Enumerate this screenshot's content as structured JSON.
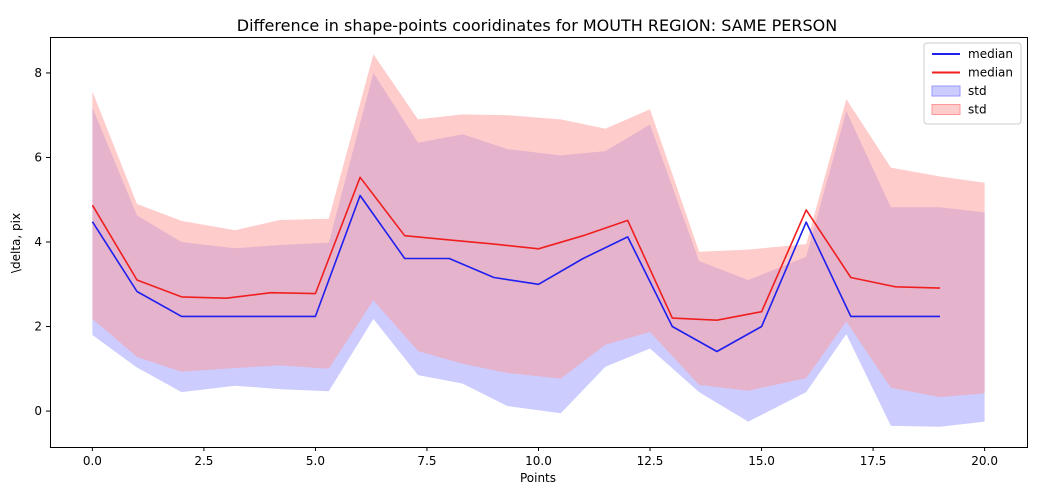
{
  "chart_data": {
    "type": "line",
    "title": "Difference in shape-points cooridinates for MOUTH REGION: SAME PERSON",
    "xlabel": "Points",
    "ylabel": "\\delta, pix",
    "xlim": [
      -0.95,
      20.95
    ],
    "ylim": [
      -0.85,
      8.85
    ],
    "x_ticks": [
      0.0,
      2.5,
      5.0,
      7.5,
      10.0,
      12.5,
      15.0,
      17.5,
      20.0
    ],
    "x_tick_labels": [
      "0.0",
      "2.5",
      "5.0",
      "7.5",
      "10.0",
      "12.5",
      "15.0",
      "17.5",
      "20.0"
    ],
    "y_ticks": [
      0,
      2,
      4,
      6,
      8
    ],
    "y_tick_labels": [
      "0",
      "2",
      "4",
      "6",
      "8"
    ],
    "grid": false,
    "legend_position": "top-right",
    "series": [
      {
        "name": "median",
        "kind": "line",
        "color": "#1f1ff0",
        "x": [
          0,
          1,
          2,
          3,
          4,
          5,
          6,
          7,
          8,
          9,
          10,
          11,
          12,
          13,
          14,
          15,
          16,
          17,
          18,
          19
        ],
        "values": [
          4.48,
          2.83,
          2.24,
          2.24,
          2.24,
          2.24,
          5.1,
          3.61,
          3.61,
          3.16,
          3.0,
          3.61,
          4.12,
          2.0,
          1.41,
          2.0,
          4.47,
          2.24,
          2.24,
          2.24
        ]
      },
      {
        "name": "median",
        "kind": "line",
        "color": "#f01f1f",
        "x": [
          0,
          1,
          2,
          3,
          4,
          5,
          6,
          7,
          8,
          9,
          10,
          11,
          12,
          13,
          14,
          15,
          16,
          17,
          18,
          19
        ],
        "values": [
          4.87,
          3.1,
          2.7,
          2.67,
          2.8,
          2.78,
          5.53,
          4.15,
          4.05,
          3.95,
          3.84,
          4.15,
          4.51,
          2.2,
          2.15,
          2.35,
          4.76,
          3.16,
          2.94,
          2.91
        ]
      },
      {
        "name": "std",
        "kind": "band",
        "color": "#9999ff",
        "x": [
          0,
          1,
          2,
          3.2,
          4.2,
          5.3,
          6.3,
          7.3,
          8.3,
          9.3,
          10.5,
          11.5,
          12.5,
          13.6,
          14.7,
          16.0,
          16.9,
          17.9,
          19.0,
          20.0
        ],
        "upper": [
          7.18,
          4.63,
          4.0,
          3.85,
          3.93,
          3.98,
          8.0,
          6.35,
          6.55,
          6.2,
          6.05,
          6.15,
          6.78,
          3.55,
          3.1,
          3.65,
          7.1,
          4.82,
          4.82,
          4.7
        ],
        "lower": [
          1.8,
          1.03,
          0.45,
          0.6,
          0.52,
          0.47,
          2.18,
          0.85,
          0.65,
          0.12,
          -0.05,
          1.05,
          1.48,
          0.45,
          -0.25,
          0.45,
          1.82,
          -0.35,
          -0.37,
          -0.25
        ]
      },
      {
        "name": "std",
        "kind": "band",
        "color": "#ff9999",
        "x": [
          0,
          1,
          2,
          3.2,
          4.2,
          5.3,
          6.3,
          7.3,
          8.3,
          9.3,
          10.5,
          11.5,
          12.5,
          13.6,
          14.7,
          16.0,
          16.9,
          17.9,
          19.0,
          20.0
        ],
        "upper": [
          7.56,
          4.9,
          4.5,
          4.28,
          4.52,
          4.55,
          8.44,
          6.9,
          7.02,
          7.0,
          6.9,
          6.68,
          7.14,
          3.77,
          3.82,
          3.95,
          7.38,
          5.76,
          5.55,
          5.4
        ],
        "lower": [
          2.18,
          1.28,
          0.93,
          1.02,
          1.08,
          1.0,
          2.62,
          1.42,
          1.12,
          0.9,
          0.77,
          1.57,
          1.87,
          0.62,
          0.48,
          0.78,
          2.12,
          0.55,
          0.33,
          0.42
        ]
      }
    ]
  }
}
